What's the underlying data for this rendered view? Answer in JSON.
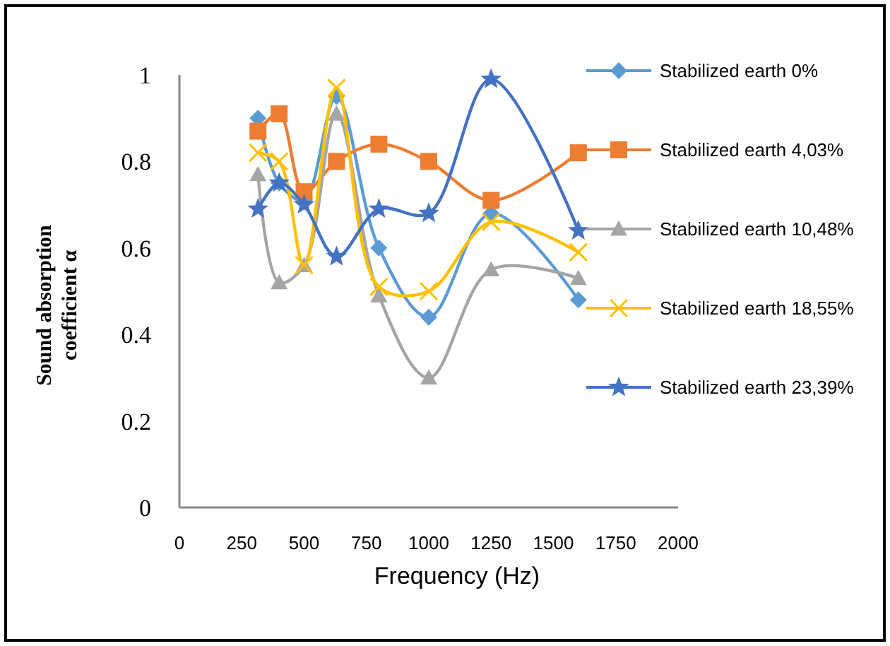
{
  "chart_data": {
    "type": "line",
    "xlabel": "Frequency (Hz)",
    "ylabel": "Sound absorption coefficient α",
    "xlim": [
      0,
      2000
    ],
    "xticks": [
      0,
      250,
      500,
      750,
      1000,
      1250,
      1500,
      1750,
      2000
    ],
    "ylim": [
      0,
      1
    ],
    "yticks": [
      0,
      0.2,
      0.4,
      0.6,
      0.8,
      1
    ],
    "x": [
      315,
      400,
      500,
      630,
      800,
      1000,
      1250,
      1600
    ],
    "grid": false,
    "legend": "right",
    "series": [
      {
        "name": "Stabilized earth 0%",
        "color": "#5b9bd5",
        "marker": "diamond",
        "values": [
          0.9,
          0.75,
          0.71,
          0.95,
          0.6,
          0.44,
          0.68,
          0.48
        ]
      },
      {
        "name": "Stabilized earth 4,03%",
        "color": "#ed7d31",
        "marker": "square",
        "values": [
          0.87,
          0.91,
          0.73,
          0.8,
          0.84,
          0.8,
          0.71,
          0.82
        ]
      },
      {
        "name": "Stabilized earth 10,48%",
        "color": "#a5a5a5",
        "marker": "triangle",
        "values": [
          0.77,
          0.52,
          0.56,
          0.91,
          0.49,
          0.3,
          0.55,
          0.53
        ]
      },
      {
        "name": "Stabilized earth 18,55%",
        "color": "#ffc000",
        "marker": "cross",
        "values": [
          0.82,
          0.8,
          0.56,
          0.97,
          0.51,
          0.5,
          0.66,
          0.59
        ]
      },
      {
        "name": "Stabilized earth 23,39%",
        "color": "#4472c4",
        "marker": "star",
        "values": [
          0.69,
          0.75,
          0.7,
          0.58,
          0.69,
          0.68,
          0.99,
          0.64
        ]
      }
    ]
  }
}
